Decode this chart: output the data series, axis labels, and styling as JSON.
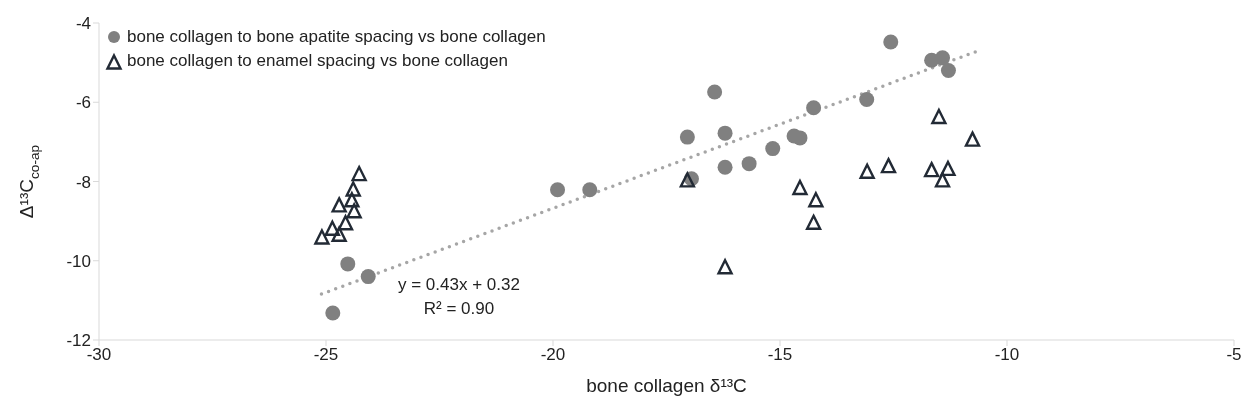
{
  "chart_data": {
    "type": "scatter",
    "xlabel": "bone collagen δ¹³C",
    "ylabel": "Δ¹³C$_{co-ap}$",
    "xlim": [
      -30,
      -5
    ],
    "xticks": [
      -30,
      -25,
      -20,
      -15,
      -10,
      -5
    ],
    "ylim": [
      -12,
      -4
    ],
    "yticks": [
      -12,
      -10,
      -8,
      -6,
      -4
    ],
    "grid": false,
    "legend": "top left",
    "annotations": [
      "y = 0.43x + 0.32",
      "R² = 0.90"
    ],
    "series": [
      {
        "name": "bone collagen to bone apatite spacing vs bone collagen",
        "color": "#808080",
        "marker": "circle",
        "x": [
          -24.52,
          -24.07,
          -24.85,
          -19.9,
          -19.19,
          -12.56,
          -11.66,
          -11.42,
          -11.29,
          -16.44,
          -14.26,
          -13.09,
          -17.04,
          -16.21,
          -14.69,
          -14.56,
          -15.16,
          -15.68,
          -16.21,
          -16.95
        ],
        "values": [
          -10.08,
          -10.4,
          -11.32,
          -8.21,
          -8.21,
          -4.48,
          -4.94,
          -4.88,
          -5.2,
          -5.74,
          -6.14,
          -5.93,
          -6.88,
          -6.78,
          -6.85,
          -6.9,
          -7.17,
          -7.55,
          -7.64,
          -7.93
        ]
      },
      {
        "name": "bone collagen to enamel spacing vs bone collagen",
        "color": "#222a35",
        "marker": "triangle",
        "x": [
          -24.27,
          -24.4,
          -24.71,
          -24.43,
          -24.38,
          -24.57,
          -24.86,
          -24.71,
          -25.09,
          -17.04,
          -14.56,
          -14.21,
          -14.26,
          -16.21,
          -13.08,
          -12.61,
          -11.66,
          -11.3,
          -11.42,
          -11.5,
          -10.76
        ],
        "values": [
          -7.8,
          -8.19,
          -8.59,
          -8.46,
          -8.74,
          -9.04,
          -9.18,
          -9.33,
          -9.4,
          -7.96,
          -8.15,
          -8.46,
          -9.03,
          -10.15,
          -7.74,
          -7.6,
          -7.7,
          -7.67,
          -7.96,
          -6.36,
          -6.93
        ]
      },
      {
        "type": "line",
        "color": "#a6a6a6",
        "line_style": "dotted",
        "marker": "none",
        "x": [
          -25.1,
          -10.7
        ],
        "values": [
          -10.84,
          -4.73
        ]
      }
    ]
  }
}
